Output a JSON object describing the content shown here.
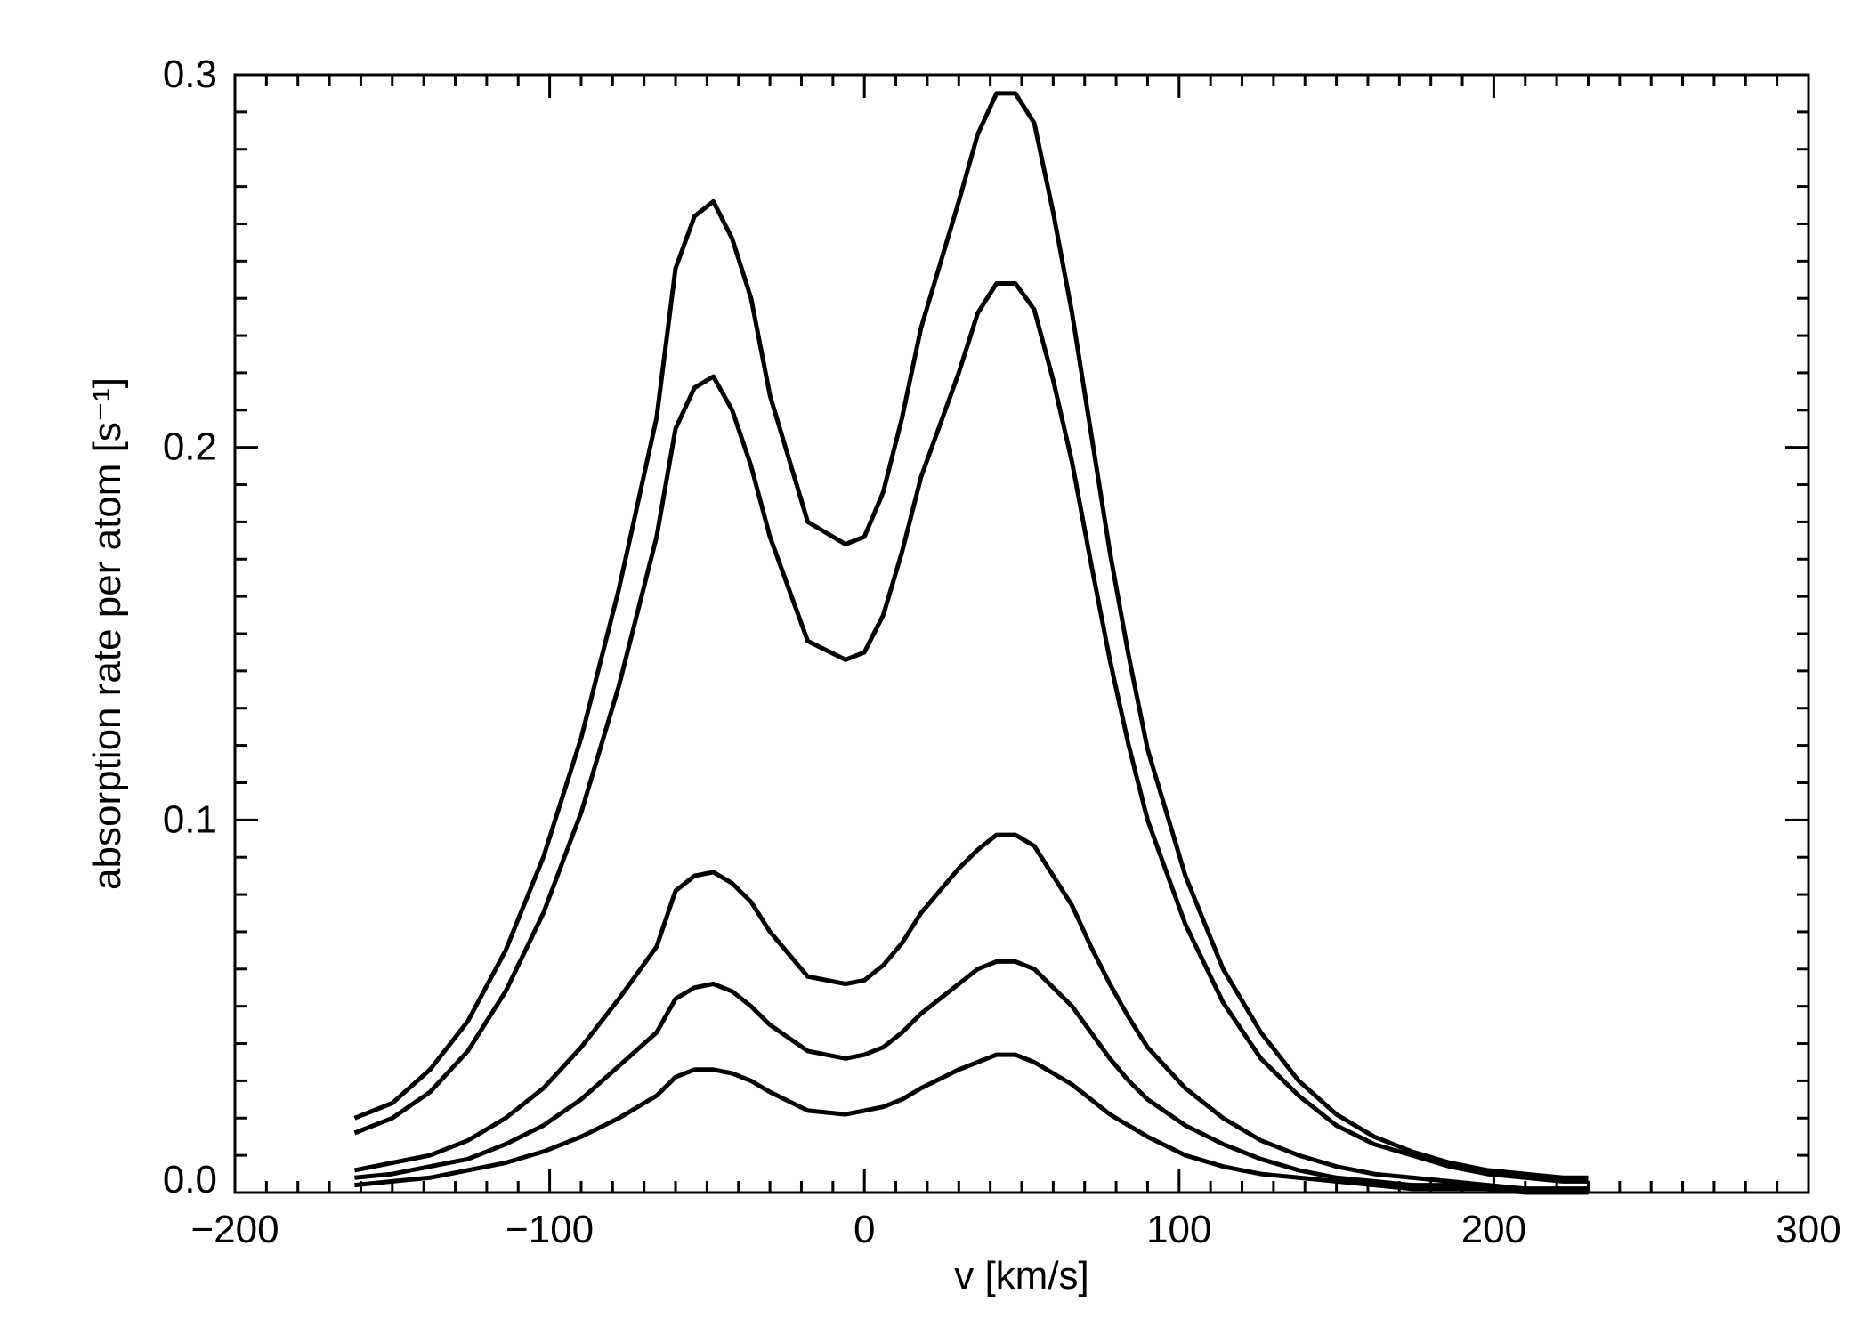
{
  "chart_data": {
    "type": "line",
    "xlabel": "v [km/s]",
    "ylabel": "absorption rate per atom [s⁻¹]",
    "xlim": [
      -200,
      300
    ],
    "ylim": [
      0,
      0.3
    ],
    "x_ticks": [
      "−200",
      "−100",
      "0",
      "100",
      "200",
      "300"
    ],
    "y_ticks": [
      "0.0",
      "0.1",
      "0.2",
      "0.3"
    ],
    "grid": false,
    "legend": "none",
    "line_color": "#000000",
    "x": [
      -162,
      -150,
      -138,
      -126,
      -114,
      -102,
      -90,
      -78,
      -66,
      -60,
      -54,
      -48,
      -42,
      -36,
      -30,
      -18,
      -6,
      0,
      6,
      12,
      18,
      30,
      36,
      42,
      48,
      54,
      60,
      66,
      72,
      78,
      84,
      90,
      102,
      114,
      126,
      138,
      150,
      162,
      174,
      186,
      198,
      210,
      222,
      230
    ],
    "series": [
      {
        "values": [
          0.02,
          0.024,
          0.033,
          0.046,
          0.065,
          0.09,
          0.122,
          0.162,
          0.208,
          0.248,
          0.262,
          0.266,
          0.256,
          0.24,
          0.214,
          0.18,
          0.174,
          0.176,
          0.188,
          0.208,
          0.232,
          0.266,
          0.284,
          0.295,
          0.295,
          0.287,
          0.263,
          0.236,
          0.204,
          0.172,
          0.144,
          0.119,
          0.085,
          0.06,
          0.043,
          0.03,
          0.021,
          0.015,
          0.011,
          0.008,
          0.006,
          0.005,
          0.004,
          0.004
        ]
      },
      {
        "values": [
          0.016,
          0.02,
          0.027,
          0.038,
          0.054,
          0.075,
          0.102,
          0.136,
          0.176,
          0.205,
          0.216,
          0.219,
          0.21,
          0.195,
          0.176,
          0.148,
          0.143,
          0.145,
          0.155,
          0.172,
          0.192,
          0.22,
          0.236,
          0.244,
          0.244,
          0.237,
          0.218,
          0.196,
          0.169,
          0.143,
          0.12,
          0.1,
          0.072,
          0.051,
          0.036,
          0.026,
          0.018,
          0.013,
          0.01,
          0.007,
          0.005,
          0.004,
          0.003,
          0.003
        ]
      },
      {
        "values": [
          0.006,
          0.008,
          0.01,
          0.014,
          0.02,
          0.028,
          0.039,
          0.052,
          0.066,
          0.081,
          0.085,
          0.086,
          0.083,
          0.078,
          0.07,
          0.058,
          0.056,
          0.057,
          0.061,
          0.067,
          0.075,
          0.087,
          0.092,
          0.096,
          0.096,
          0.093,
          0.085,
          0.077,
          0.066,
          0.056,
          0.047,
          0.039,
          0.028,
          0.02,
          0.014,
          0.01,
          0.007,
          0.005,
          0.004,
          0.003,
          0.002,
          0.001,
          0.001,
          0.001
        ]
      },
      {
        "values": [
          0.004,
          0.005,
          0.007,
          0.009,
          0.013,
          0.018,
          0.025,
          0.034,
          0.043,
          0.052,
          0.055,
          0.056,
          0.054,
          0.05,
          0.045,
          0.038,
          0.036,
          0.037,
          0.039,
          0.043,
          0.048,
          0.056,
          0.06,
          0.062,
          0.062,
          0.06,
          0.055,
          0.05,
          0.043,
          0.036,
          0.03,
          0.025,
          0.018,
          0.013,
          0.009,
          0.006,
          0.004,
          0.003,
          0.002,
          0.002,
          0.001,
          0.001,
          0.001,
          0.001
        ]
      },
      {
        "values": [
          0.002,
          0.003,
          0.004,
          0.006,
          0.008,
          0.011,
          0.015,
          0.02,
          0.026,
          0.031,
          0.033,
          0.033,
          0.032,
          0.03,
          0.027,
          0.022,
          0.021,
          0.022,
          0.023,
          0.025,
          0.028,
          0.033,
          0.035,
          0.037,
          0.037,
          0.035,
          0.032,
          0.029,
          0.025,
          0.021,
          0.018,
          0.015,
          0.01,
          0.007,
          0.005,
          0.004,
          0.003,
          0.002,
          0.001,
          0.001,
          0.001,
          0.0,
          0.0,
          0.0
        ]
      }
    ]
  }
}
